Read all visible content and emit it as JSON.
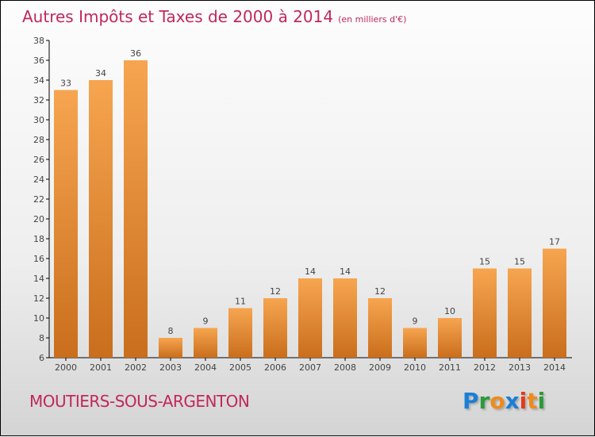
{
  "chart_data": {
    "type": "bar",
    "title": "Autres Impôts et Taxes de 2000 à 2014",
    "subtitle": "(en milliers d'€)",
    "categories": [
      "2000",
      "2001",
      "2002",
      "2003",
      "2004",
      "2005",
      "2006",
      "2007",
      "2008",
      "2009",
      "2010",
      "2011",
      "2012",
      "2013",
      "2014"
    ],
    "values": [
      33,
      34,
      36,
      8,
      9,
      11,
      12,
      14,
      14,
      12,
      9,
      10,
      15,
      15,
      17
    ],
    "xlabel": "",
    "ylabel": "",
    "ylim": [
      6,
      38
    ],
    "yticks": [
      6,
      8,
      10,
      12,
      14,
      16,
      18,
      20,
      22,
      24,
      26,
      28,
      30,
      32,
      34,
      36,
      38
    ],
    "grid": false,
    "bar_color": "#f0963c"
  },
  "city": "MOUTIERS-SOUS-ARGENTON",
  "logo": {
    "letters": [
      "P",
      "r",
      "o",
      "x",
      "i",
      "t",
      "i"
    ],
    "colors": [
      "#1a7fd6",
      "#2a9a3a",
      "#f08a1a",
      "#1a7fd6",
      "#e33a1a",
      "#f08a1a",
      "#2a9a3a"
    ]
  }
}
